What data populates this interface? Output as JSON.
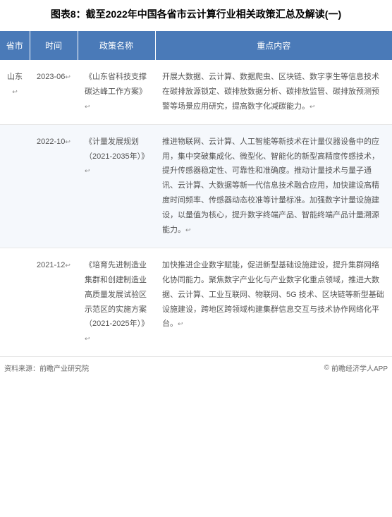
{
  "title": "图表8：截至2022年中国各省市云计算行业相关政策汇总及解读(一)",
  "headers": {
    "province": "省市",
    "time": "时间",
    "policy": "政策名称",
    "content": "重点内容"
  },
  "rows": [
    {
      "province": "山东",
      "time": "2023-06",
      "policy": "《山东省科技支撑碳达峰工作方案》",
      "content": "开展大数据、云计算、数据爬虫、区块链、数字孪生等信息技术在碳排放源锁定、碳排放数据分析、碳排放监管、碳排放预测预警等场景应用研究，提高数字化减碳能力。"
    },
    {
      "province": "",
      "time": "2022-10",
      "policy": "《计量发展规划（2021-2035年）》",
      "content": "推进物联网、云计算、人工智能等新技术在计量仪器设备中的应用，集中突破集成化、微型化、智能化的新型高精度传感技术，提升传感器稳定性、可靠性和准确度。推动计量技术与量子通讯、云计算、大数据等新一代信息技术融合应用，加快建设高精度时间频率、传感器动态校准等计量标准。加强数字计量设施建设，以量值为核心，提升数字终端产品、智能终端产品计量溯源能力。"
    },
    {
      "province": "",
      "time": "2021-12",
      "policy": "《培育先进制造业集群和创建制造业高质量发展试验区示范区的实施方案（2021-2025年）》",
      "content": "加快推进企业数字赋能，促进新型基础设施建设，提升集群网络化协同能力。聚焦数字产业化与产业数字化重点领域，推进大数据、云计算、工业互联网、物联网、5G 技术、区块链等新型基础设施建设，跨地区跨领域构建集群信息交互与技术协作网络化平台。"
    }
  ],
  "footer": {
    "source": "资料来源：前瞻产业研究院",
    "copyright": "前瞻经济学人APP"
  },
  "colors": {
    "header_bg": "#4a7ab8",
    "header_text": "#ffffff",
    "alt_row_bg": "#f5f8fc",
    "text_color": "#555555",
    "footer_color": "#6a6a6a"
  }
}
